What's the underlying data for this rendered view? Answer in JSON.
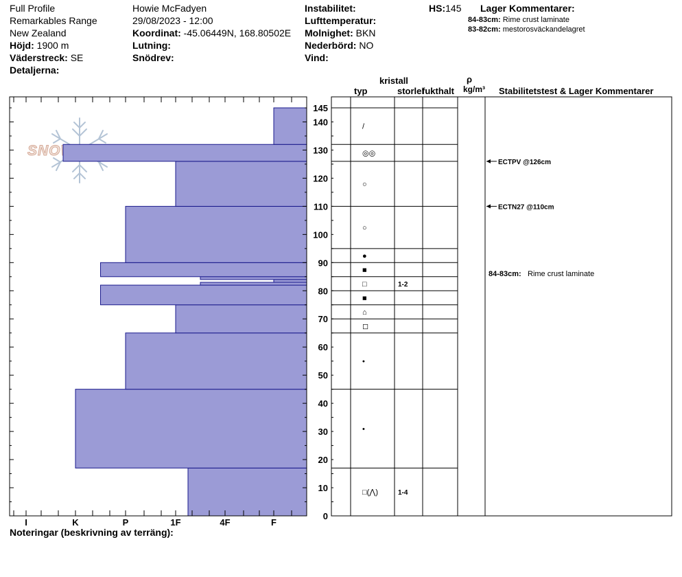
{
  "header": {
    "col1": [
      "Full Profile",
      "Remarkables Range",
      "New Zealand"
    ],
    "hojd": {
      "label": "Höjd:",
      "value": "1900 m"
    },
    "vaderstreck": {
      "label": "Väderstreck:",
      "value": "SE"
    },
    "detaljerna": {
      "label": "Detaljerna:"
    },
    "observer": "Howie McFadyen",
    "datetime": "29/08/2023 - 12:00",
    "koordinat": {
      "label": "Koordinat:",
      "value": "-45.06449N, 168.80502E"
    },
    "lutning": {
      "label": "Lutning:"
    },
    "snodrev": {
      "label": "Snödrev:"
    },
    "instabilitet": {
      "label": "Instabilitet:"
    },
    "lufttemperatur": {
      "label": "Lufttemperatur:"
    },
    "molnighet": {
      "label": "Molnighet:",
      "value": "BKN"
    },
    "nederbord": {
      "label": "Nederbörd:",
      "value": "NO"
    },
    "vind": {
      "label": "Vind:"
    },
    "hs": {
      "label": "HS:",
      "value": "145"
    },
    "lager_title": "Lager Kommentarer:",
    "lager": [
      {
        "depth": "84-83cm:",
        "text": "Rime crust laminate"
      },
      {
        "depth": "83-82cm:",
        "text": "mestorosväckandelagret"
      }
    ]
  },
  "logo": {
    "text": "SNOW PILOT"
  },
  "table_headers": {
    "kristall": "kristall",
    "typ": "typ",
    "storlek": "storlek",
    "fukthalt": "fukthalt",
    "rho": "ρ",
    "kgm3": "kg/m³",
    "stab": "Stabilitetstest & Lager Kommentarer"
  },
  "notes_label": "Noteringar (beskrivning av terräng):",
  "colors": {
    "bar_fill": "#9b9bd6",
    "bar_stroke": "#1a1a8c",
    "axis": "#000000"
  },
  "chart_data": {
    "type": "bar",
    "orientation": "horizontal",
    "title": "",
    "ylabel": "",
    "ylim": [
      0,
      145
    ],
    "yticks": [
      0,
      10,
      20,
      30,
      40,
      50,
      60,
      70,
      80,
      90,
      100,
      110,
      120,
      130,
      140,
      145
    ],
    "hardness_categories": [
      "I",
      "K",
      "P",
      "1F",
      "4F",
      "F"
    ],
    "layers": [
      {
        "bottom": 0,
        "top": 17,
        "hardness": "4F-"
      },
      {
        "bottom": 17,
        "top": 45,
        "hardness": "P"
      },
      {
        "bottom": 45,
        "top": 65,
        "hardness": "1F"
      },
      {
        "bottom": 65,
        "top": 75,
        "hardness": "4F"
      },
      {
        "bottom": 75,
        "top": 82,
        "hardness": "P+"
      },
      {
        "bottom": 82,
        "top": 83,
        "hardness": "I"
      },
      {
        "bottom": 83,
        "top": 84,
        "hardness": "F"
      },
      {
        "bottom": 84,
        "top": 85,
        "hardness": "I"
      },
      {
        "bottom": 85,
        "top": 90,
        "hardness": "P+"
      },
      {
        "bottom": 90,
        "top": 110,
        "hardness": "1F"
      },
      {
        "bottom": 110,
        "top": 126,
        "hardness": "4F"
      },
      {
        "bottom": 126,
        "top": 132,
        "hardness": "K+"
      },
      {
        "bottom": 132,
        "top": 145,
        "hardness": "F"
      }
    ],
    "bar_values": [
      3.25,
      1.0,
      2.0,
      3.0,
      1.5,
      3.5,
      5.0,
      3.5,
      1.5,
      2.0,
      3.0,
      0.75,
      5.0
    ],
    "crystal_rows": [
      {
        "bottom": 0,
        "top": 17,
        "typ": "□(⋀)",
        "storlek": "1-4"
      },
      {
        "bottom": 17,
        "top": 45,
        "typ": "•"
      },
      {
        "bottom": 45,
        "top": 65,
        "typ": "•"
      },
      {
        "bottom": 65,
        "top": 70,
        "typ": "◻"
      },
      {
        "bottom": 70,
        "top": 75,
        "typ": "⌂"
      },
      {
        "bottom": 75,
        "top": 80,
        "typ": "■"
      },
      {
        "bottom": 80,
        "top": 85,
        "typ": "□",
        "storlek": "1-2"
      },
      {
        "bottom": 85,
        "top": 90,
        "typ": "■"
      },
      {
        "bottom": 90,
        "top": 95,
        "typ": "●"
      },
      {
        "bottom": 95,
        "top": 110,
        "typ": "○"
      },
      {
        "bottom": 110,
        "top": 126,
        "typ": "○"
      },
      {
        "bottom": 126,
        "top": 132,
        "typ": "◎◎"
      },
      {
        "bottom": 132,
        "top": 145,
        "typ": "/"
      }
    ],
    "stability_tests": [
      {
        "depth": 126,
        "label": "ECTPV @126cm"
      },
      {
        "depth": 110,
        "label": "ECTN27 @110cm"
      }
    ],
    "layer_comment": {
      "depth": "84-83cm:",
      "text": "Rime crust laminate"
    }
  }
}
